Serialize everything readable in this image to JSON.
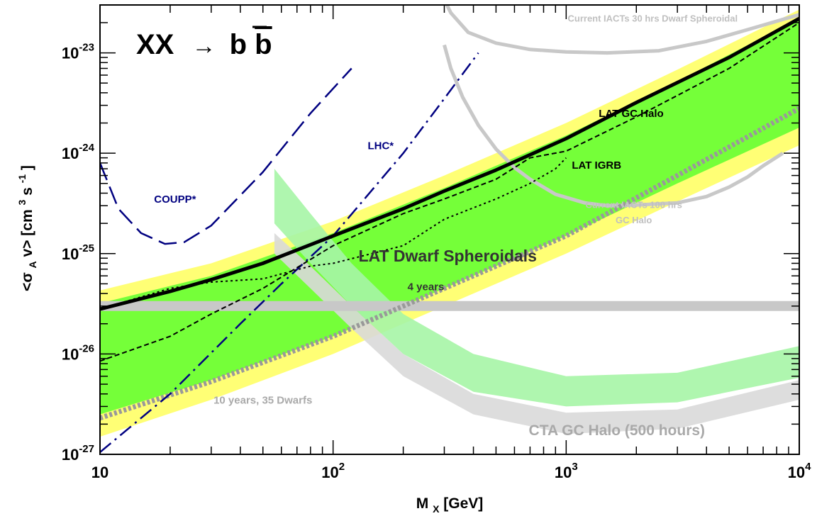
{
  "chart_data": {
    "type": "line",
    "title_left": "XX",
    "title_arrow": "→",
    "title_b": "b",
    "title_bbar": "b",
    "xlabel_main": "M",
    "xlabel_sub": "X",
    "xlabel_unit": " [GeV]",
    "ylabel_parts": [
      "<σ",
      "A",
      " v> [cm",
      "3",
      " s",
      "-1",
      "]"
    ],
    "x_scale": "log",
    "y_scale": "log",
    "xlim": [
      10,
      10000
    ],
    "ylim": [
      1e-27,
      3e-23
    ],
    "x_ticks": [
      {
        "value": 10,
        "base": "10",
        "exp": ""
      },
      {
        "value": 100,
        "base": "10",
        "exp": "2"
      },
      {
        "value": 1000,
        "base": "10",
        "exp": "3"
      },
      {
        "value": 10000,
        "base": "10",
        "exp": "4"
      }
    ],
    "y_ticks": [
      {
        "value": 1e-27,
        "base": "10",
        "exp": "-27"
      },
      {
        "value": 1e-26,
        "base": "10",
        "exp": "-26"
      },
      {
        "value": 1e-25,
        "base": "10",
        "exp": "-25"
      },
      {
        "value": 1e-24,
        "base": "10",
        "exp": "-24"
      },
      {
        "value": 1e-23,
        "base": "10",
        "exp": "-23"
      }
    ],
    "bands": [
      {
        "name": "LAT Dwarf Spheroidals 4 years band (yellow)",
        "color": "#ffff66",
        "x": [
          10,
          30,
          100,
          300,
          1000,
          3000,
          10000
        ],
        "lower": [
          1.5e-27,
          3.5e-27,
          1e-26,
          3e-26,
          1e-25,
          3.3e-25,
          1.2e-24
        ],
        "upper": [
          4.3e-26,
          8e-26,
          2.1e-25,
          6e-25,
          2e-24,
          6.8e-24,
          2.7e-23
        ]
      },
      {
        "name": "LAT Dwarf Spheroidals 4 years band (green)",
        "color": "#66ff33",
        "x": [
          10,
          30,
          100,
          300,
          1000,
          3000,
          10000
        ],
        "lower": [
          2.5e-27,
          5.5e-27,
          1.5e-26,
          4.5e-26,
          1.5e-25,
          5e-25,
          1.8e-24
        ],
        "upper": [
          3.2e-26,
          6e-26,
          1.6e-25,
          4.5e-25,
          1.5e-24,
          5.2e-24,
          2.2e-23
        ]
      },
      {
        "name": "CTA GC Halo (500 hours) outer",
        "color": "#d9d9d9",
        "x": [
          56,
          80,
          120,
          200,
          400,
          1000,
          3000,
          10000
        ],
        "lower": [
          1e-25,
          4.5e-26,
          1.8e-26,
          6e-27,
          2.5e-27,
          1.6e-27,
          1.8e-27,
          3.5e-27
        ],
        "upper": [
          1.6e-25,
          7.5e-26,
          3e-26,
          1e-26,
          4e-27,
          2.6e-27,
          2.8e-27,
          5.5e-27
        ]
      },
      {
        "name": "CTA GC Halo (500 hours) inner",
        "color": "#a6f5a6",
        "x": [
          56,
          80,
          120,
          200,
          400,
          1000,
          3000,
          10000
        ],
        "lower": [
          2e-25,
          8e-26,
          3e-26,
          1e-26,
          4.2e-27,
          3e-27,
          3.3e-27,
          5.8e-27
        ],
        "upper": [
          7e-25,
          2.5e-25,
          8e-26,
          2.5e-26,
          1e-26,
          6e-27,
          6.5e-27,
          1.2e-26
        ]
      }
    ],
    "series": [
      {
        "name": "LAT Dwarf Spheroidals",
        "style": "solid-thick",
        "color": "#000000",
        "x": [
          10,
          20,
          30,
          50,
          100,
          200,
          300,
          500,
          1000,
          2000,
          5000,
          10000
        ],
        "y": [
          2.8e-26,
          4.2e-26,
          5.5e-26,
          8e-26,
          1.5e-25,
          2.8e-25,
          4.2e-25,
          6.8e-25,
          1.4e-24,
          3.2e-24,
          9e-24,
          2.2e-23
        ]
      },
      {
        "name": "LAT GC Halo",
        "style": "dashed",
        "color": "#000000",
        "x": [
          10,
          20,
          30,
          50,
          100,
          200,
          300,
          500,
          700,
          1000,
          2000,
          5000,
          10000
        ],
        "y": [
          8.5e-27,
          1.5e-26,
          2.5e-26,
          4.5e-26,
          1.2e-25,
          2.5e-25,
          3.5e-25,
          5.5e-25,
          9e-25,
          1.05e-24,
          2.3e-24,
          7e-24,
          2e-23
        ]
      },
      {
        "name": "LAT IGRB",
        "style": "dotted",
        "color": "#000000",
        "x": [
          10,
          20,
          30,
          50,
          80,
          100,
          200,
          300,
          500,
          700,
          900,
          1000
        ],
        "y": [
          2.8e-26,
          4.5e-26,
          5.2e-26,
          5.6e-26,
          7.5e-26,
          8e-26,
          1.2e-25,
          2.2e-25,
          3.5e-25,
          5e-25,
          7e-25,
          9e-25
        ]
      },
      {
        "name": "COUPP*",
        "style": "long-dash",
        "color": "#000080",
        "x": [
          10,
          12,
          15,
          19,
          23,
          30,
          50,
          80,
          120
        ],
        "y": [
          8e-25,
          2.8e-25,
          1.6e-25,
          1.25e-25,
          1.3e-25,
          1.9e-25,
          6.5e-25,
          2.5e-24,
          7e-24
        ]
      },
      {
        "name": "LHC*",
        "style": "dash-dot",
        "color": "#000080",
        "x": [
          10,
          20,
          40,
          60,
          100,
          200,
          300,
          420
        ],
        "y": [
          1.05e-27,
          4e-27,
          2e-26,
          5e-26,
          1.5e-25,
          1e-24,
          3.5e-24,
          1e-23
        ]
      },
      {
        "name": "Current IACTs 30 hrs Dwarf Spheroidal",
        "style": "solid-grey",
        "color": "#c8c8c8",
        "x": [
          290,
          320,
          380,
          500,
          700,
          1000,
          1500,
          2500,
          4000,
          6000,
          10000
        ],
        "y": [
          4e-23,
          2.5e-23,
          1.6e-23,
          1.25e-23,
          1.08e-23,
          1.02e-23,
          1e-23,
          1.05e-23,
          1.3e-23,
          1.7e-23,
          2.4e-23
        ]
      },
      {
        "name": "Current IACTs 100 hrs GC Halo",
        "style": "solid-grey",
        "color": "#c8c8c8",
        "x": [
          300,
          320,
          360,
          420,
          500,
          600,
          700,
          900,
          1200,
          1500,
          2000,
          3000,
          4000,
          5000,
          6000,
          7000,
          8500
        ],
        "y": [
          1.2e-23,
          7e-24,
          3.6e-24,
          1.9e-24,
          1.1e-24,
          7.2e-25,
          5.5e-25,
          3.9e-25,
          3.2e-25,
          3e-25,
          3.05e-25,
          3.2e-25,
          3.7e-25,
          4.6e-25,
          5.8e-25,
          7.5e-25,
          1e-24
        ]
      },
      {
        "name": "10 years, 35 Dwarfs",
        "style": "dotted-thick-grey",
        "color": "#999999",
        "x": [
          10,
          30,
          100,
          300,
          1000,
          3000,
          10000
        ],
        "y": [
          2.3e-27,
          5.3e-27,
          1.5e-26,
          4.5e-26,
          1.5e-25,
          6e-25,
          2.8e-24
        ]
      },
      {
        "name": "Thermal relic",
        "style": "thick-grey-band",
        "color": "#c8c8c8",
        "x": [
          10,
          10000
        ],
        "y": [
          3e-26,
          3e-26
        ]
      }
    ],
    "annotations": [
      {
        "text": "COUPP*",
        "x": 21,
        "y": 3.2e-25,
        "color": "#000080",
        "size": 15
      },
      {
        "text": "LHC*",
        "x": 160,
        "y": 1.1e-24,
        "color": "#000080",
        "size": 15
      },
      {
        "text": "LAT GC Halo",
        "x": 1900,
        "y": 2.3e-24,
        "color": "#000000",
        "size": 15
      },
      {
        "text": "LAT IGRB",
        "x": 1350,
        "y": 7e-25,
        "color": "#000000",
        "size": 15
      },
      {
        "text": "LAT Dwarf Spheroidals",
        "x": 310,
        "y": 8.3e-26,
        "color": "#333333",
        "size": 23
      },
      {
        "text": "4 years",
        "x": 250,
        "y": 4.3e-26,
        "color": "#333333",
        "size": 15
      },
      {
        "text": "Current IACTs 30 hrs Dwarf Spheroidal",
        "x": 2350,
        "y": 2.05e-23,
        "color": "#c0c0c0",
        "size": 13
      },
      {
        "text": "Current IACTs 100 hrs",
        "x": 1950,
        "y": 2.85e-25,
        "color": "#c0c0c0",
        "size": 13
      },
      {
        "text": "GC Halo",
        "x": 1950,
        "y": 2e-25,
        "color": "#c0c0c0",
        "size": 13
      },
      {
        "text": "10 years, 35 Dwarfs",
        "x": 50,
        "y": 3.2e-27,
        "color": "#aaaaaa",
        "size": 15
      },
      {
        "text": "CTA GC Halo (500 hours)",
        "x": 1650,
        "y": 1.55e-27,
        "color": "#a9a9a9",
        "size": 21
      }
    ],
    "grid": false,
    "legend": "none"
  }
}
